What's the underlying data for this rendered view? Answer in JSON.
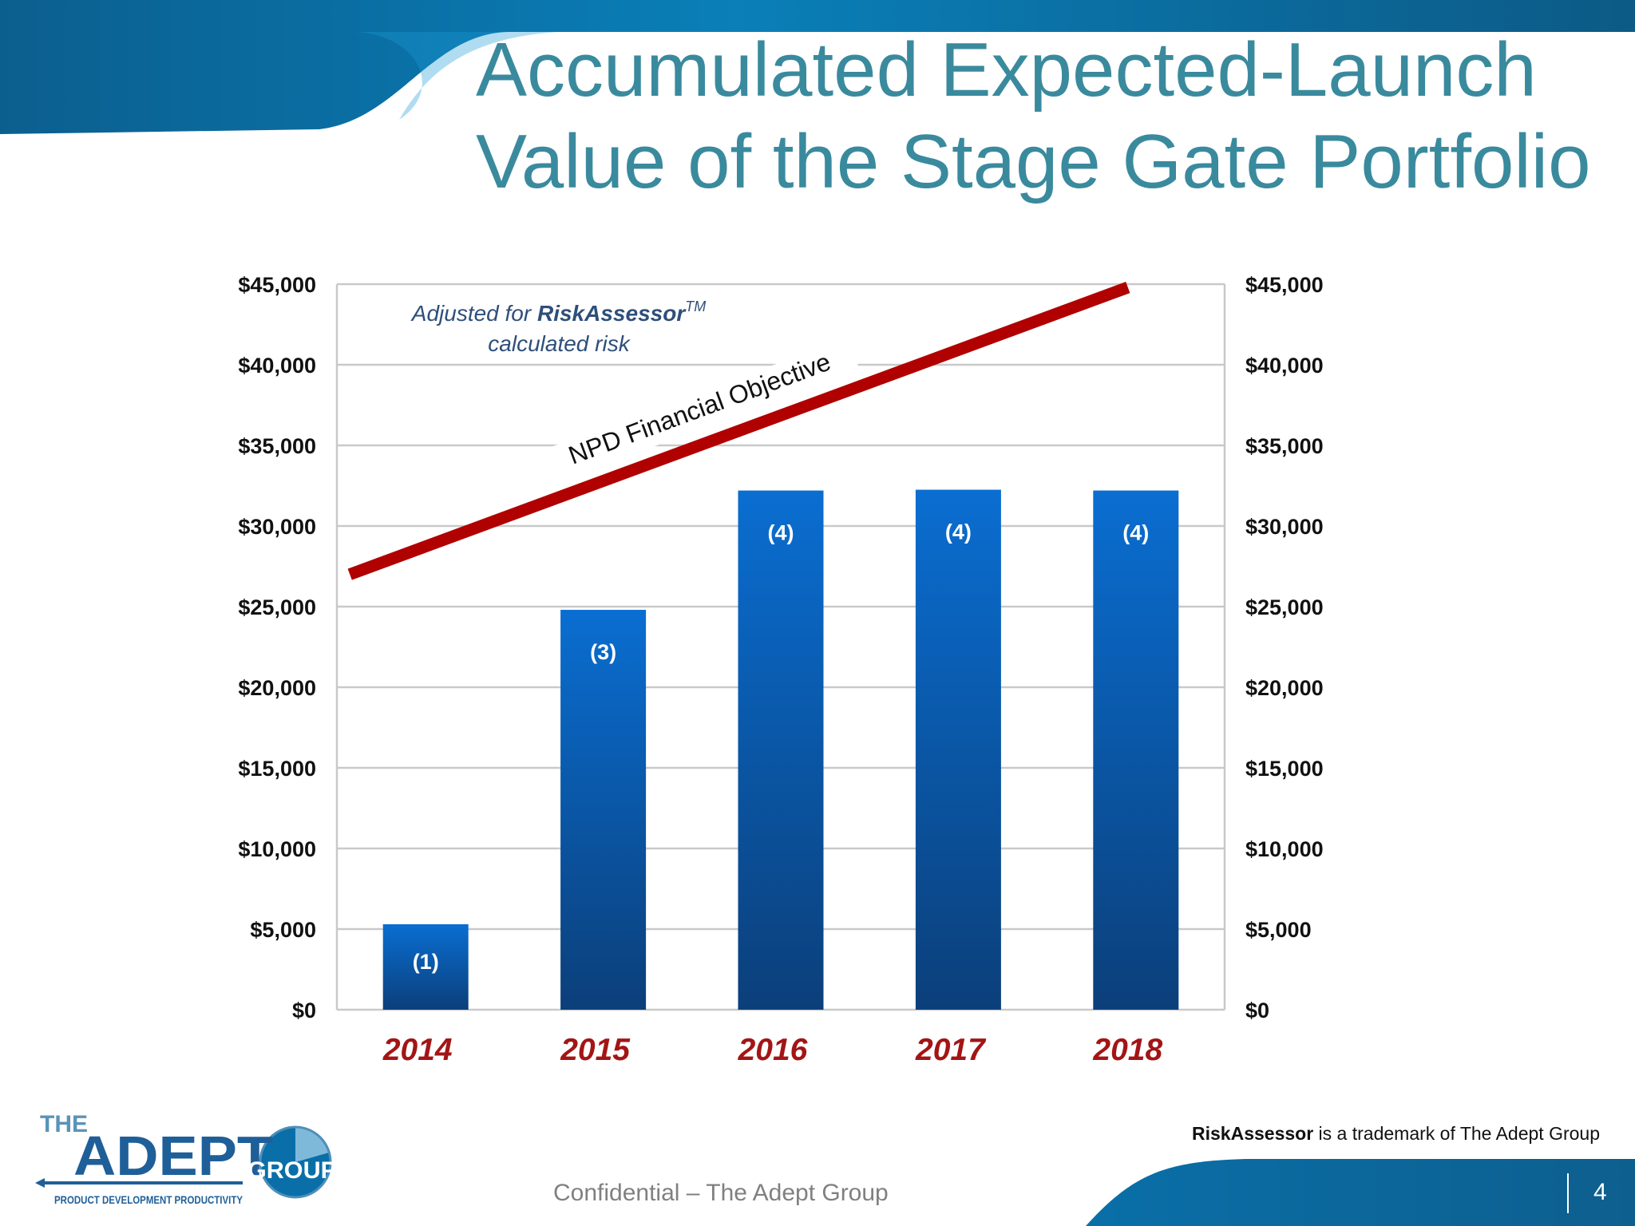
{
  "slide": {
    "title_line1": "Accumulated Expected-Launch",
    "title_line2": "Value of the Stage Gate Portfolio",
    "footer": "Confidential – The Adept Group",
    "page_number": "4",
    "trademark_brand": "RiskAssessor",
    "trademark_text": " is a trademark of The Adept Group",
    "colors": {
      "header_blue": "#0a6fa8",
      "title": "#3a8a9e",
      "bar_top": "#0a6ed1",
      "bar_bottom": "#0b3f7a",
      "objective_line": "#b00000",
      "year_label": "#a31515"
    }
  },
  "logo": {
    "word_the": "THE",
    "word_adept": "ADEPT",
    "word_group": "GROUP",
    "tagline": "PRODUCT DEVELOPMENT PRODUCTIVITY"
  },
  "chart_data": {
    "type": "bar",
    "categories": [
      "2014",
      "2015",
      "2016",
      "2017",
      "2018"
    ],
    "values": [
      5300,
      24800,
      32200,
      32250,
      32200
    ],
    "bar_labels": [
      "(1)",
      "(3)",
      "(4)",
      "(4)",
      "(4)"
    ],
    "ylim": [
      0,
      45000
    ],
    "yticks": [
      0,
      5000,
      10000,
      15000,
      20000,
      25000,
      30000,
      35000,
      40000,
      45000
    ],
    "ytick_labels": [
      "$0",
      "$5,000",
      "$10,000",
      "$15,000",
      "$20,000",
      "$25,000",
      "$30,000",
      "$35,000",
      "$40,000",
      "$45,000"
    ],
    "secondary_axis": true,
    "grid": true,
    "annotation": {
      "text_prefix": "Adjusted for ",
      "text_brand": "RiskAssessor",
      "text_tm": "TM",
      "text_line2": "calculated risk"
    },
    "objective_line": {
      "label": "NPD Financial Objective",
      "start": {
        "x": "2014",
        "value": 27000
      },
      "end": {
        "x": "2018",
        "value": 44800
      }
    }
  }
}
